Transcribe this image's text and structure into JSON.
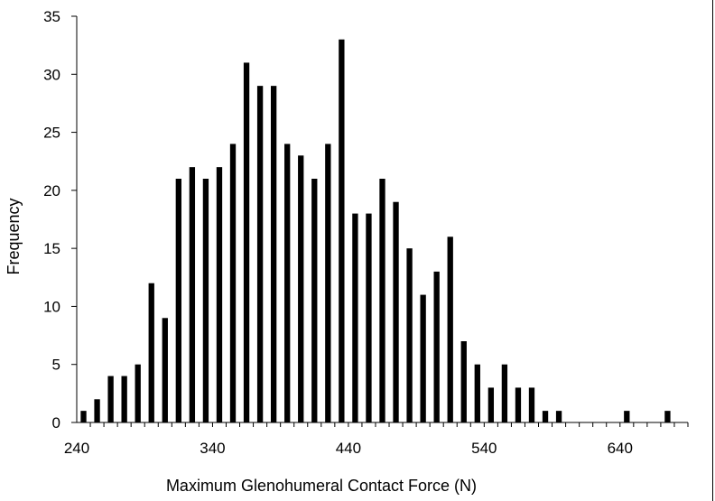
{
  "chart_data": {
    "type": "bar",
    "title": "",
    "xlabel": "Maximum Glenohumeral Contact Force (N)",
    "ylabel": "Frequency",
    "xlim": [
      240,
      690
    ],
    "ylim": [
      0,
      35
    ],
    "x_ticks": [
      240,
      340,
      440,
      540,
      640
    ],
    "y_ticks": [
      0,
      5,
      10,
      15,
      20,
      25,
      30,
      35
    ],
    "bin_width": 10,
    "grid": false,
    "legend": "none",
    "bar_color": "#000000",
    "bins": [
      250,
      260,
      270,
      280,
      290,
      300,
      310,
      320,
      330,
      340,
      350,
      360,
      370,
      380,
      390,
      400,
      410,
      420,
      430,
      440,
      450,
      460,
      470,
      480,
      490,
      500,
      510,
      520,
      530,
      540,
      550,
      560,
      570,
      580,
      590,
      600,
      610,
      620,
      630,
      640,
      650,
      660,
      670,
      680
    ],
    "values": [
      1,
      2,
      4,
      4,
      5,
      12,
      9,
      21,
      22,
      21,
      22,
      24,
      31,
      29,
      29,
      24,
      23,
      21,
      24,
      33,
      18,
      18,
      21,
      19,
      15,
      11,
      13,
      16,
      7,
      5,
      3,
      5,
      3,
      3,
      1,
      1,
      0,
      0,
      0,
      0,
      1,
      0,
      0,
      1
    ]
  }
}
